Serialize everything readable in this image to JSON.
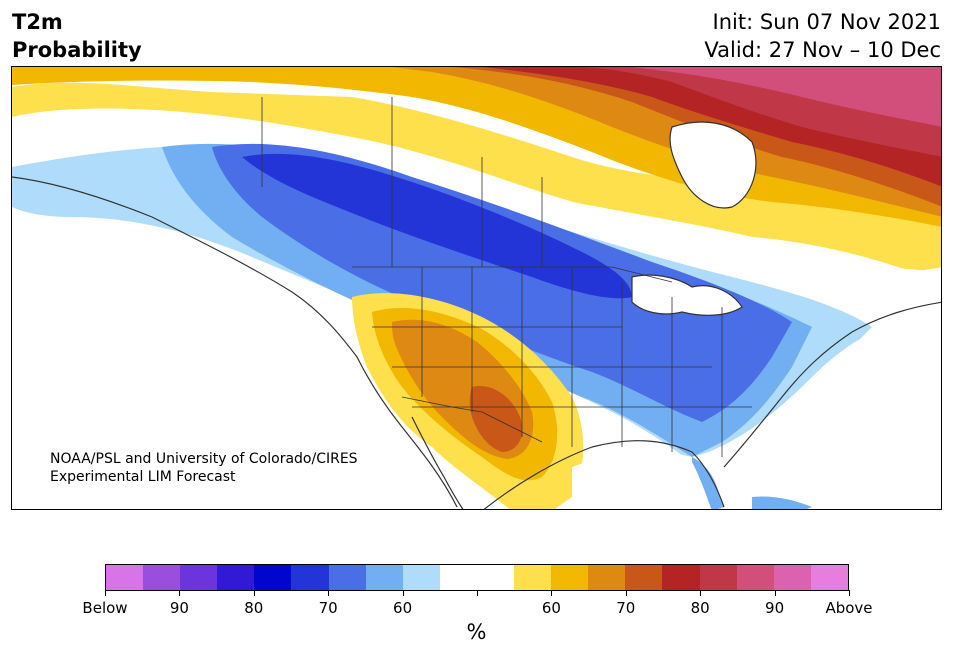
{
  "header": {
    "title_line1": "T2m",
    "title_line2": "Probability",
    "init": "Init: Sun 07 Nov 2021",
    "valid": "Valid: 27 Nov – 10 Dec"
  },
  "map": {
    "region": "North America",
    "credit_line1": "NOAA/PSL and University of Colorado/CIRES",
    "credit_line2": "Experimental LIM Forecast"
  },
  "colorbar": {
    "unit_label": "%",
    "colors": [
      "#d674e8",
      "#9a4ee0",
      "#6b34dc",
      "#3219d4",
      "#0006cb",
      "#2335d6",
      "#4a6ee6",
      "#72aef2",
      "#aedcfa",
      "#ffffff",
      "#ffffff",
      "#fde04c",
      "#f2b700",
      "#de8a12",
      "#c85718",
      "#b42424",
      "#c03848",
      "#d24e7b",
      "#db62ae",
      "#e57edc"
    ],
    "tick_labels": [
      "Below",
      "90",
      "80",
      "70",
      "60",
      "",
      "60",
      "70",
      "80",
      "90",
      "Above"
    ]
  }
}
